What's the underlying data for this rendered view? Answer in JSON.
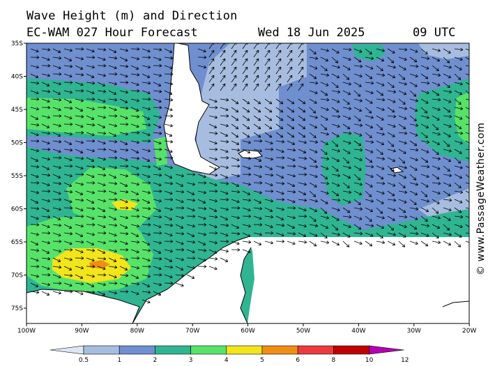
{
  "header": {
    "title": "Wave Height (m) and Direction",
    "model": "EC-WAM 027 Hour Forecast",
    "date": "Wed 18 Jun 2025",
    "time": "09 UTC"
  },
  "watermark": "© www.PassageWeather.com",
  "axes": {
    "lat_labels": [
      "35S",
      "40S",
      "45S",
      "50S",
      "55S",
      "60S",
      "65S",
      "70S",
      "75S"
    ],
    "lon_labels": [
      "100W",
      "90W",
      "80W",
      "70W",
      "60W",
      "50W",
      "40W",
      "30W",
      "20W"
    ]
  },
  "legend": {
    "colors": [
      "#dde6f4",
      "#a7bde0",
      "#6f8fcf",
      "#2fb592",
      "#57e36a",
      "#f2e51b",
      "#f08d17",
      "#ec3b3f",
      "#bf0007",
      "#b400b0"
    ],
    "tick_labels": [
      "0.5",
      "1",
      "2",
      "3",
      "4",
      "5",
      "6",
      "8",
      "10",
      "12"
    ]
  },
  "palette": {
    "ocean_blue": "#6f8fcf",
    "light_blue": "#a7bde0",
    "teal": "#2fb592",
    "green": "#57e36a",
    "yellow": "#f2e51b",
    "orange": "#f08d17",
    "land": "#ffffff"
  }
}
